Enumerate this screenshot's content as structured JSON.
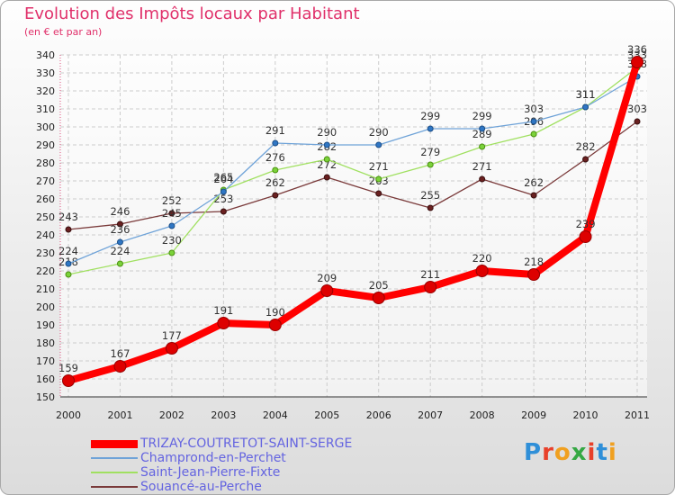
{
  "header": {
    "title": "Evolution des Impôts locaux par Habitant",
    "subtitle": "(en € et par an)"
  },
  "logo": {
    "text": "Proxiti"
  },
  "chart_data": {
    "type": "line",
    "title": "Evolution des Impôts locaux par Habitant",
    "subtitle": "(en € et par an)",
    "x": [
      "2000",
      "2001",
      "2002",
      "2003",
      "2004",
      "2005",
      "2006",
      "2007",
      "2008",
      "2009",
      "2010",
      "2011"
    ],
    "ylim": [
      150,
      340
    ],
    "yticks": [
      150,
      160,
      170,
      180,
      190,
      200,
      210,
      220,
      230,
      240,
      250,
      260,
      270,
      280,
      290,
      300,
      310,
      320,
      330,
      340
    ],
    "grid": true,
    "legend_position": "bottom-left",
    "series": [
      {
        "name": "TRIZAY-COUTRETOT-SAINT-SERGE",
        "color": "#ff0000",
        "values": [
          159,
          167,
          177,
          191,
          190,
          209,
          205,
          211,
          220,
          218,
          239,
          336
        ]
      },
      {
        "name": "Champrond-en-Perchet",
        "color": "#6fa3d8",
        "values": [
          224,
          236,
          245,
          264,
          291,
          290,
          290,
          299,
          299,
          303,
          311,
          328
        ]
      },
      {
        "name": "Saint-Jean-Pierre-Fixte",
        "color": "#a0e060",
        "values": [
          218,
          224,
          230,
          265,
          276,
          282,
          271,
          279,
          289,
          296,
          311,
          333
        ]
      },
      {
        "name": "Souancé-au-Perche",
        "color": "#7a3a3a",
        "values": [
          243,
          246,
          252,
          253,
          262,
          272,
          263,
          255,
          271,
          262,
          282,
          303
        ]
      }
    ]
  }
}
